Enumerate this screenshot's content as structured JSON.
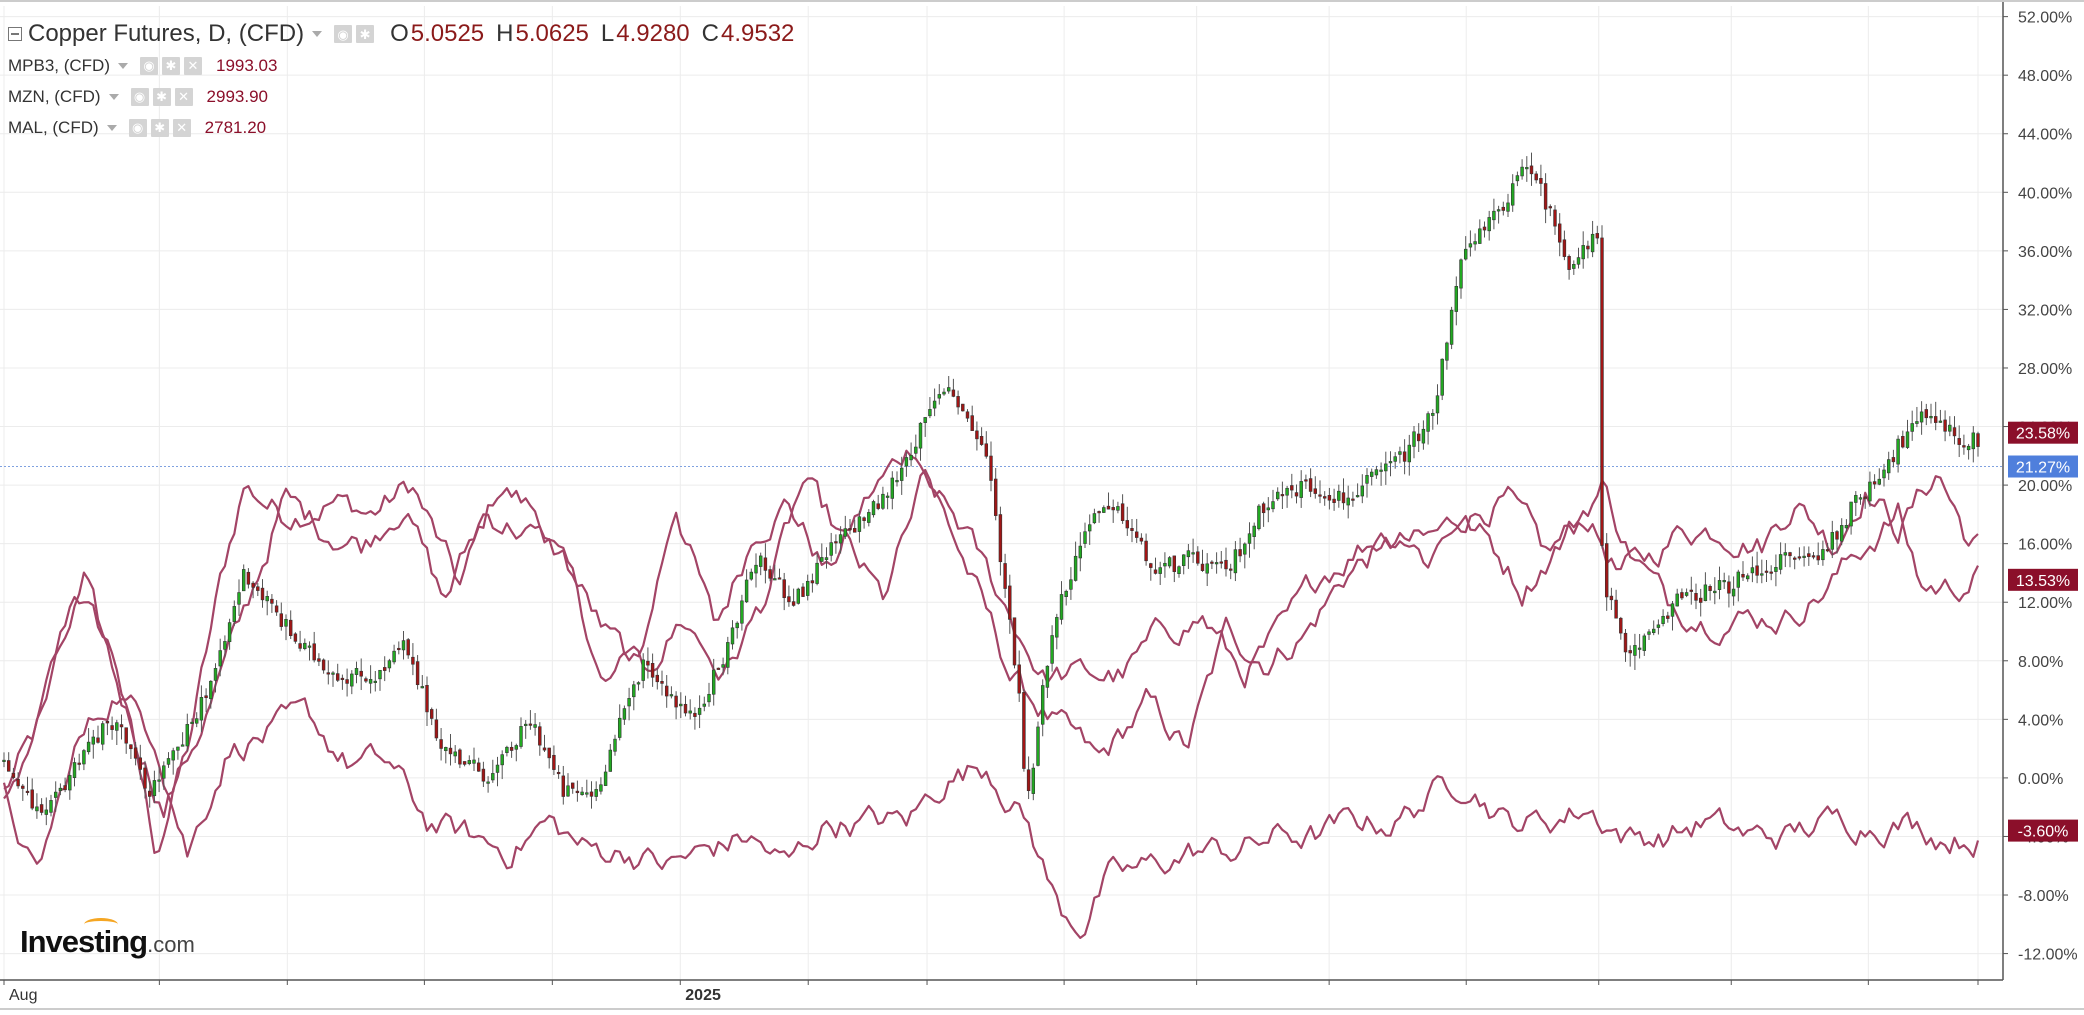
{
  "legend": {
    "main": {
      "title": "Copper Futures, D, (CFD)",
      "open_label": "O",
      "open": "5.0525",
      "high_label": "H",
      "high": "5.0625",
      "low_label": "L",
      "low": "4.9280",
      "close_label": "C",
      "close": "4.9532"
    },
    "comparisons": [
      {
        "name": "MPB3, (CFD)",
        "value": "1993.03"
      },
      {
        "name": "MZN, (CFD)",
        "value": "2993.90"
      },
      {
        "name": "MAL, (CFD)",
        "value": "2781.20"
      }
    ]
  },
  "watermark": {
    "brand": "Investing",
    "suffix": ".com"
  },
  "colors": {
    "up": "#22a922",
    "down": "#a11616",
    "comparison_line": "#a34466",
    "badge": "#8b0f2a",
    "crosshair_badge": "#4f7fdc",
    "grid": "#ececec",
    "axis": "#555555"
  },
  "chart_data": {
    "type": "candlestick_with_line_overlays",
    "percent_scale": true,
    "ylim": [
      -14,
      53
    ],
    "y_ticks": [
      52,
      48,
      44,
      40,
      36,
      32,
      28,
      24,
      20,
      16,
      12,
      8,
      4,
      0,
      -4,
      -8,
      -12
    ],
    "y_tick_labels": [
      "52.00%",
      "48.00%",
      "44.00%",
      "40.00%",
      "36.00%",
      "32.00%",
      "28.00%",
      "24.00%",
      "20.00%",
      "16.00%",
      "12.00%",
      "8.00%",
      "4.00%",
      "0.00%",
      "-4.00%",
      "-8.00%",
      "-12.00%"
    ],
    "x_tick_labels": [
      "Aug",
      "2025"
    ],
    "x_tick_label_index": [
      0,
      148
    ],
    "x_tick_index": [
      0,
      34,
      62,
      92,
      120,
      148,
      176,
      202,
      232,
      261,
      290,
      320,
      349,
      378,
      408,
      432
    ],
    "bar_count": 421,
    "crosshair_value": 21.27,
    "crosshair_label": "21.27%",
    "last_value_badges": [
      {
        "label": "23.58%",
        "value": 23.58
      },
      {
        "label": "13.53%",
        "value": 13.53
      },
      {
        "label": "-3.60%",
        "value": -3.6
      }
    ],
    "main_series": {
      "name": "Copper Futures",
      "anchors": [
        [
          0,
          1
        ],
        [
          10,
          -3
        ],
        [
          20,
          2
        ],
        [
          28,
          4
        ],
        [
          36,
          -1
        ],
        [
          44,
          2
        ],
        [
          54,
          8
        ],
        [
          60,
          14
        ],
        [
          66,
          12
        ],
        [
          74,
          9
        ],
        [
          84,
          7
        ],
        [
          94,
          7
        ],
        [
          100,
          9
        ],
        [
          110,
          2
        ],
        [
          122,
          0
        ],
        [
          132,
          4
        ],
        [
          140,
          -1
        ],
        [
          148,
          -1
        ],
        [
          160,
          8
        ],
        [
          172,
          4
        ],
        [
          180,
          8
        ],
        [
          188,
          15
        ],
        [
          198,
          12
        ],
        [
          208,
          16
        ],
        [
          220,
          19
        ],
        [
          230,
          24
        ],
        [
          236,
          27
        ],
        [
          246,
          22
        ],
        [
          254,
          6
        ],
        [
          256,
          -2
        ],
        [
          262,
          10
        ],
        [
          272,
          18
        ],
        [
          280,
          18
        ],
        [
          288,
          14
        ],
        [
          296,
          15
        ],
        [
          306,
          14
        ],
        [
          316,
          19
        ],
        [
          326,
          20
        ],
        [
          336,
          19
        ],
        [
          350,
          22
        ],
        [
          358,
          25
        ],
        [
          364,
          35
        ],
        [
          372,
          38
        ],
        [
          382,
          42
        ],
        [
          392,
          35
        ],
        [
          399,
          37
        ],
        [
          400,
          14
        ],
        [
          406,
          8
        ],
        [
          418,
          12
        ],
        [
          430,
          13
        ],
        [
          446,
          15
        ],
        [
          454,
          15
        ],
        [
          464,
          19
        ],
        [
          478,
          24
        ],
        [
          482,
          25
        ],
        [
          490,
          23
        ]
      ]
    },
    "comparison_series": [
      {
        "name": "MPB3, (CFD)",
        "anchors": [
          [
            0,
            -1
          ],
          [
            8,
            3
          ],
          [
            18,
            13
          ],
          [
            28,
            8
          ],
          [
            38,
            -5
          ],
          [
            46,
            2
          ],
          [
            54,
            13
          ],
          [
            60,
            20
          ],
          [
            70,
            18
          ],
          [
            82,
            19
          ],
          [
            92,
            18
          ],
          [
            102,
            20
          ],
          [
            114,
            13
          ],
          [
            124,
            20
          ],
          [
            134,
            18
          ],
          [
            144,
            12
          ],
          [
            150,
            6
          ],
          [
            160,
            9
          ],
          [
            168,
            19
          ],
          [
            178,
            10
          ],
          [
            188,
            17
          ],
          [
            196,
            19
          ],
          [
            206,
            14
          ],
          [
            216,
            19
          ],
          [
            228,
            23
          ],
          [
            240,
            15
          ],
          [
            252,
            7
          ],
          [
            262,
            4
          ],
          [
            274,
            1
          ],
          [
            286,
            5
          ],
          [
            296,
            2
          ],
          [
            306,
            10
          ],
          [
            316,
            8
          ],
          [
            326,
            10
          ],
          [
            336,
            14
          ],
          [
            346,
            16
          ],
          [
            356,
            16
          ],
          [
            366,
            18
          ],
          [
            376,
            19
          ],
          [
            386,
            15
          ],
          [
            396,
            18
          ],
          [
            404,
            14
          ],
          [
            412,
            15
          ],
          [
            420,
            17
          ],
          [
            430,
            17
          ],
          [
            440,
            16
          ],
          [
            448,
            19
          ],
          [
            458,
            16
          ],
          [
            466,
            20
          ],
          [
            474,
            17
          ],
          [
            484,
            21
          ],
          [
            492,
            16
          ]
        ]
      },
      {
        "name": "MZN, (CFD)",
        "anchors": [
          [
            0,
            -2
          ],
          [
            10,
            5
          ],
          [
            20,
            13
          ],
          [
            30,
            5
          ],
          [
            40,
            -2
          ],
          [
            50,
            4
          ],
          [
            60,
            11
          ],
          [
            70,
            19
          ],
          [
            80,
            17
          ],
          [
            90,
            16
          ],
          [
            100,
            19
          ],
          [
            110,
            12
          ],
          [
            120,
            18
          ],
          [
            130,
            17
          ],
          [
            140,
            15
          ],
          [
            150,
            10
          ],
          [
            160,
            7
          ],
          [
            170,
            11
          ],
          [
            180,
            7
          ],
          [
            190,
            12
          ],
          [
            200,
            20
          ],
          [
            210,
            16
          ],
          [
            220,
            12
          ],
          [
            230,
            20
          ],
          [
            240,
            17
          ],
          [
            250,
            12
          ],
          [
            260,
            7
          ],
          [
            270,
            7
          ],
          [
            280,
            7
          ],
          [
            290,
            10
          ],
          [
            300,
            11
          ],
          [
            310,
            7
          ],
          [
            320,
            10
          ],
          [
            330,
            14
          ],
          [
            340,
            16
          ],
          [
            350,
            17
          ],
          [
            356,
            15
          ],
          [
            364,
            18
          ],
          [
            372,
            16
          ],
          [
            380,
            13
          ],
          [
            392,
            17
          ],
          [
            400,
            20
          ],
          [
            406,
            16
          ],
          [
            416,
            12
          ],
          [
            426,
            11
          ],
          [
            436,
            11
          ],
          [
            446,
            11
          ],
          [
            456,
            13
          ],
          [
            466,
            16
          ],
          [
            474,
            18
          ],
          [
            480,
            13
          ],
          [
            488,
            13
          ],
          [
            494,
            14
          ]
        ]
      },
      {
        "name": "MAL, (CFD)",
        "anchors": [
          [
            0,
            -1
          ],
          [
            8,
            -7
          ],
          [
            18,
            2
          ],
          [
            28,
            6
          ],
          [
            38,
            3
          ],
          [
            46,
            -5
          ],
          [
            56,
            2
          ],
          [
            66,
            3
          ],
          [
            76,
            4
          ],
          [
            86,
            1
          ],
          [
            96,
            1
          ],
          [
            106,
            -3
          ],
          [
            116,
            -4
          ],
          [
            126,
            -5
          ],
          [
            136,
            -3
          ],
          [
            146,
            -5
          ],
          [
            156,
            -5
          ],
          [
            166,
            -6
          ],
          [
            176,
            -5
          ],
          [
            186,
            -4
          ],
          [
            196,
            -6
          ],
          [
            206,
            -3
          ],
          [
            216,
            -3
          ],
          [
            226,
            -3
          ],
          [
            236,
            0
          ],
          [
            246,
            1
          ],
          [
            256,
            -3
          ],
          [
            264,
            -9
          ],
          [
            270,
            -10
          ],
          [
            276,
            -7
          ],
          [
            288,
            -6
          ],
          [
            298,
            -5
          ],
          [
            308,
            -5
          ],
          [
            318,
            -4
          ],
          [
            328,
            -4
          ],
          [
            338,
            -3
          ],
          [
            348,
            -3
          ],
          [
            358,
            -1
          ],
          [
            366,
            0
          ],
          [
            376,
            -3
          ],
          [
            386,
            -3
          ],
          [
            396,
            -2
          ],
          [
            406,
            -4
          ],
          [
            416,
            -4
          ],
          [
            426,
            -3
          ],
          [
            436,
            -4
          ],
          [
            446,
            -4
          ],
          [
            456,
            -3
          ],
          [
            466,
            -3
          ],
          [
            476,
            -3
          ],
          [
            486,
            -4
          ],
          [
            494,
            -4
          ]
        ]
      }
    ]
  }
}
